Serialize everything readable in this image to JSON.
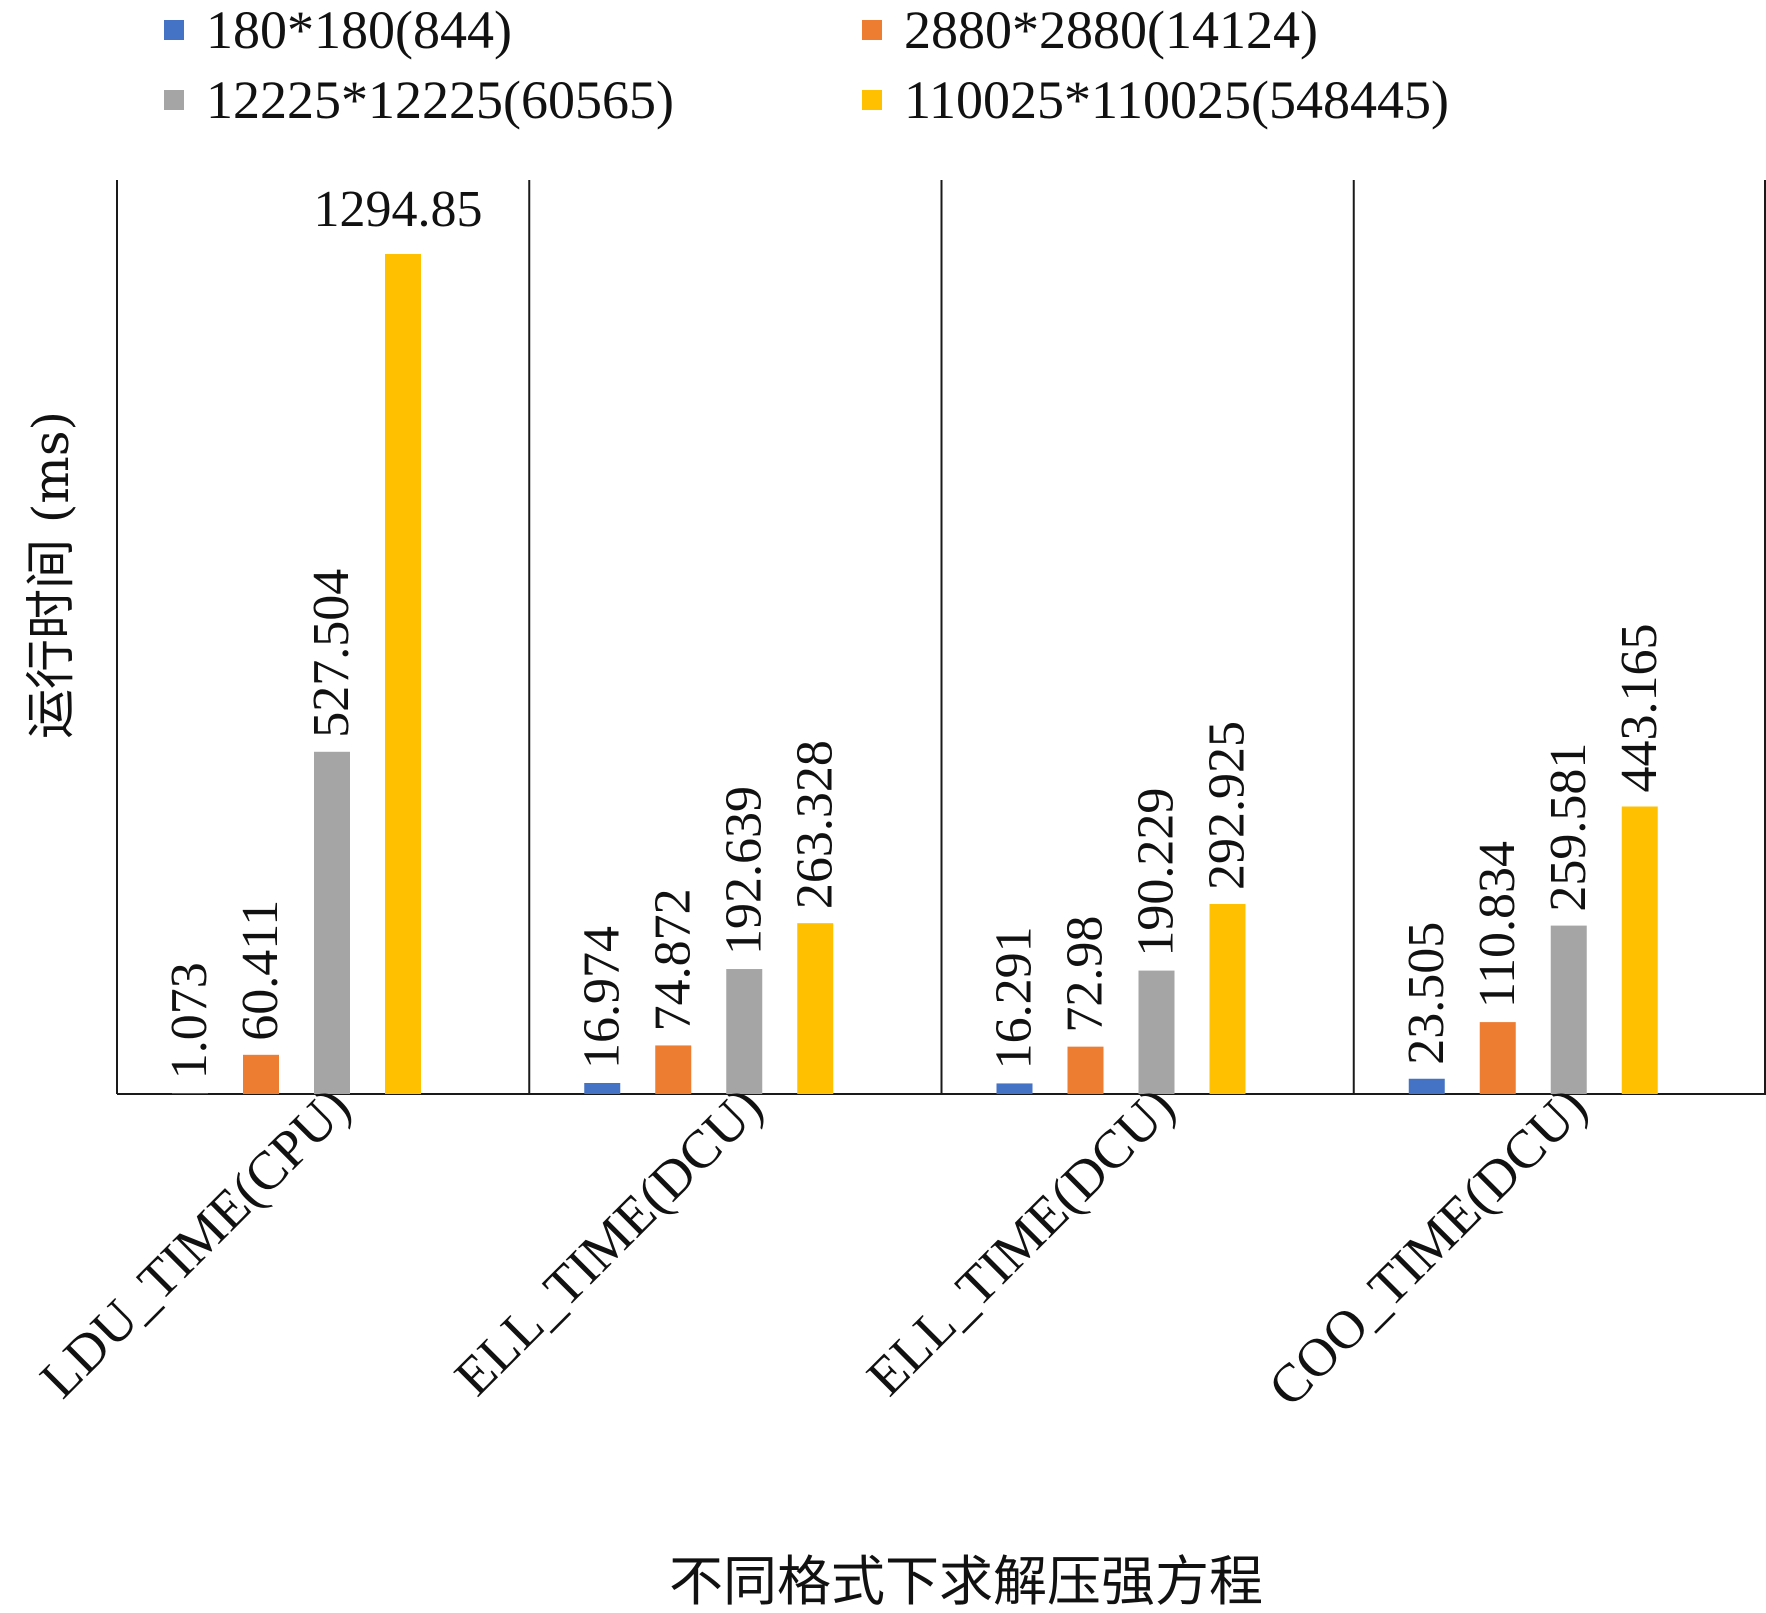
{
  "chart_data": {
    "type": "bar",
    "xlabel": "不同格式下求解压强方程",
    "ylabel": "运行时间 (ms)",
    "ylim": [
      0,
      1300
    ],
    "grid": false,
    "legend_position": "top",
    "categories": [
      "LDU_TIME(CPU)",
      "ELL_TIME(DCU)",
      "ELL_TIME(DCU)",
      "COO_TIME(DCU)"
    ],
    "series": [
      {
        "name": "180*180(844)",
        "color": "#4472C4",
        "values": [
          1.073,
          16.974,
          16.291,
          23.505
        ],
        "labels": [
          "1.073",
          "16.974",
          "16.291",
          "23.505"
        ]
      },
      {
        "name": "2880*2880(14124)",
        "color": "#ED7D31",
        "values": [
          60.411,
          74.872,
          72.98,
          110.834
        ],
        "labels": [
          "60.411",
          "74.872",
          "72.98",
          "110.834"
        ]
      },
      {
        "name": "12225*12225(60565)",
        "color": "#A5A5A5",
        "values": [
          527.504,
          192.639,
          190.229,
          259.581
        ],
        "labels": [
          "527.504",
          "192.639",
          "190.229",
          "259.581"
        ]
      },
      {
        "name": "110025*110025(548445)",
        "color": "#FFC000",
        "values": [
          1294.85,
          263.328,
          292.925,
          443.165
        ],
        "labels": [
          "1294.85",
          "263.328",
          "292.925",
          "443.165"
        ]
      }
    ]
  }
}
